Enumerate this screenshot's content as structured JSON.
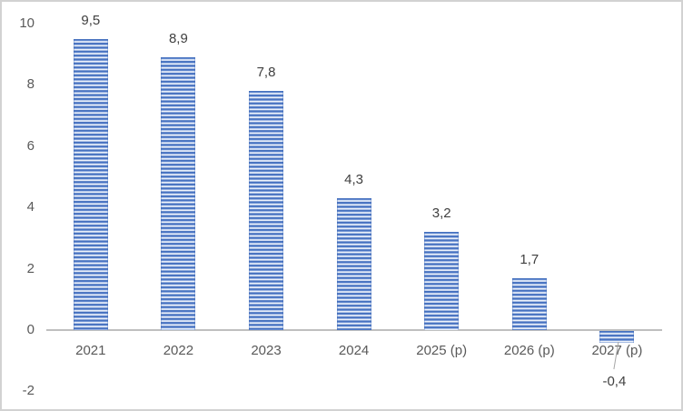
{
  "chart_data": {
    "type": "bar",
    "title": "",
    "xlabel": "",
    "ylabel": "",
    "categories": [
      "2021",
      "2022",
      "2023",
      "2024",
      "2025 (p)",
      "2026 (p)",
      "2027 (p)"
    ],
    "values": [
      9.5,
      8.9,
      7.8,
      4.3,
      3.2,
      1.7,
      -0.4
    ],
    "value_labels": [
      "9,5",
      "8,9",
      "7,8",
      "4,3",
      "3,2",
      "1,7",
      "-0,4"
    ],
    "ylim": [
      -2,
      10
    ],
    "y_ticks": [
      10,
      8,
      6,
      4,
      2,
      0,
      -2
    ],
    "y_tick_labels": [
      "10",
      "8",
      "6",
      "4",
      "2",
      "0",
      "-2"
    ],
    "grid": false,
    "legend": false,
    "decimal_separator": ",",
    "bar_color": "#4472c4",
    "bar_pattern": "horizontal-stripes",
    "axis_line_color": "#bfbfbf",
    "value_label_color": "#404040",
    "tick_label_color": "#595959",
    "leader_line_color": "#a6a6a6",
    "frame_border_color": "#d2d2d2",
    "background_color": "#ffffff"
  }
}
